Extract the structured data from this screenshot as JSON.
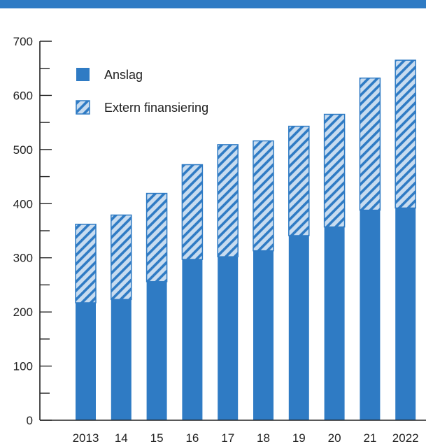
{
  "chart_data": {
    "type": "bar",
    "stacked": true,
    "categories": [
      "2013",
      "14",
      "15",
      "16",
      "17",
      "18",
      "19",
      "20",
      "21",
      "2022"
    ],
    "series": [
      {
        "name": "Anslag",
        "values": [
          217,
          223,
          256,
          297,
          302,
          313,
          341,
          357,
          388,
          392
        ],
        "pattern": "solid"
      },
      {
        "name": "Extern finansiering",
        "values": [
          145,
          156,
          163,
          175,
          207,
          203,
          202,
          208,
          244,
          273
        ],
        "pattern": "hatched"
      }
    ],
    "ylim": [
      0,
      700
    ],
    "y_ticks": [
      0,
      100,
      200,
      300,
      400,
      500,
      600,
      700
    ],
    "y_minor_step": 50,
    "legend": "top-left",
    "grid": false,
    "colors": {
      "bar": "#2f7bc4",
      "hatch_bg": "#c8dcf0",
      "banner": "#2f7bc4"
    }
  }
}
